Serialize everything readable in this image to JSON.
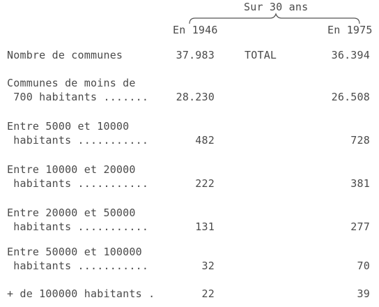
{
  "header": {
    "span_label": "Sur 30 ans",
    "col_1946": "En 1946",
    "col_1975": "En 1975"
  },
  "rows": [
    {
      "label_line1": "Nombre de communes",
      "label_line2": "",
      "v1946": "37.983",
      "middle": "TOTAL",
      "v1975": "36.394"
    },
    {
      "label_line1": "Communes de moins de",
      "label_line2": " 700 habitants .......",
      "v1946": "28.230",
      "middle": "",
      "v1975": "26.508"
    },
    {
      "label_line1": "Entre 5000 et 10000",
      "label_line2": " habitants ...........",
      "v1946": "482",
      "middle": "",
      "v1975": "728"
    },
    {
      "label_line1": "Entre 10000 et 20000",
      "label_line2": " habitants ...........",
      "v1946": "222",
      "middle": "",
      "v1975": "381"
    },
    {
      "label_line1": "Entre 20000 et 50000",
      "label_line2": " habitants ...........",
      "v1946": "131",
      "middle": "",
      "v1975": "277"
    },
    {
      "label_line1": "Entre 50000 et 100000",
      "label_line2": " habitants ...........",
      "v1946": "32",
      "middle": "",
      "v1975": "70"
    },
    {
      "label_line1": "+ de 100000 habitants .",
      "label_line2": "",
      "v1946": "22",
      "middle": "",
      "v1975": "39"
    }
  ]
}
